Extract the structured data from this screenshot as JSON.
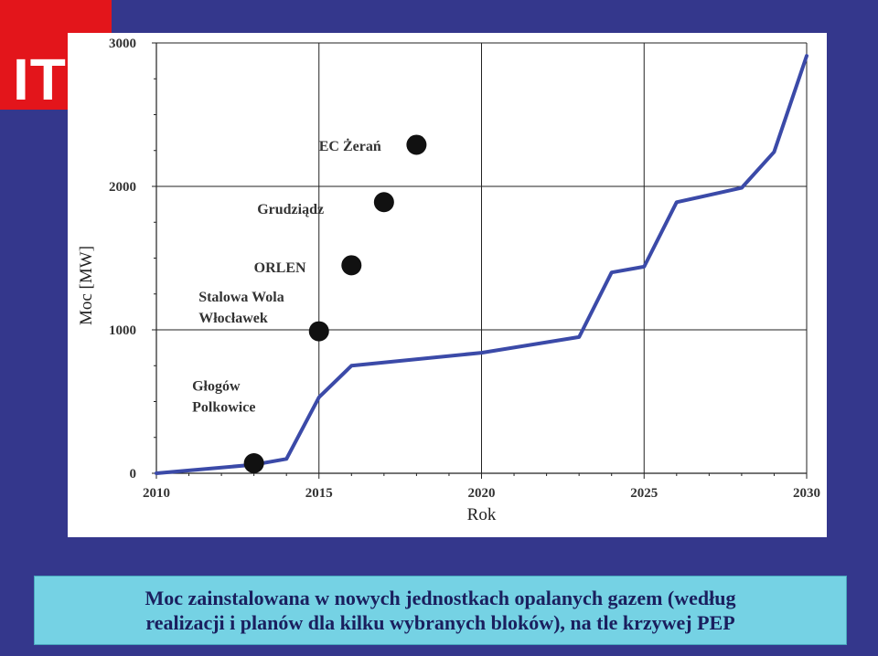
{
  "logo": {
    "text": "ITC"
  },
  "chart_data": {
    "type": "line",
    "xlabel": "Rok",
    "ylabel": "Moc [MW]",
    "xlim": [
      2010,
      2030
    ],
    "ylim": [
      0,
      3000
    ],
    "x_ticks": [
      2010,
      2015,
      2020,
      2025,
      2030
    ],
    "y_ticks": [
      0,
      1000,
      2000,
      3000
    ],
    "grid": true,
    "series": [
      {
        "x": [
          2010,
          2013,
          2014,
          2015,
          2016,
          2020,
          2023,
          2024,
          2025,
          2026,
          2028,
          2029,
          2030
        ],
        "y": [
          0,
          60,
          100,
          530,
          750,
          840,
          950,
          1400,
          1440,
          1890,
          1990,
          2240,
          2910
        ],
        "color": "#3b4aa8"
      }
    ],
    "points": [
      {
        "x": 2013,
        "y": 70
      },
      {
        "x": 2015,
        "y": 990
      },
      {
        "x": 2016,
        "y": 1450
      },
      {
        "x": 2017,
        "y": 1890
      },
      {
        "x": 2018,
        "y": 2290
      }
    ],
    "annotations": [
      {
        "lines": [
          "Głogów",
          "Polkowice"
        ],
        "x": 2011.1,
        "y": 430
      },
      {
        "lines": [
          "Stalowa Wola",
          "Włocławek"
        ],
        "x": 2011.3,
        "y": 1050
      },
      {
        "lines": [
          "ORLEN"
        ],
        "x": 2013.0,
        "y": 1400
      },
      {
        "lines": [
          "Grudziądz"
        ],
        "x": 2013.1,
        "y": 1810
      },
      {
        "lines": [
          "EC Żerań"
        ],
        "x": 2015.0,
        "y": 2250
      }
    ]
  },
  "caption": {
    "line1": "Moc zainstalowana w nowych jednostkach opalanych gazem (według",
    "line2": "realizacji i planów dla kilku wybranych bloków), na tle krzywej PEP"
  }
}
